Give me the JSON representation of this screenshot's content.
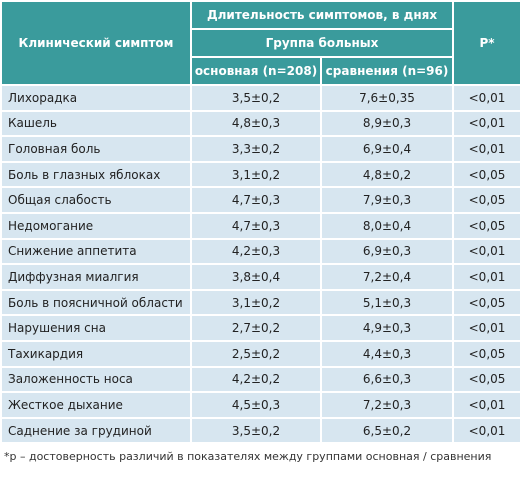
{
  "header": {
    "symptom": "Клинический симптом",
    "duration": "Длительность симптомов, в днях",
    "group": "Группа больных",
    "main": "основная (n=208)",
    "compare": "сравнения (n=96)",
    "p": "Р*"
  },
  "table": {
    "rows": [
      [
        "Лихорадка",
        "3,5±0,2",
        "7,6±0,35",
        "<0,01"
      ],
      [
        "Кашель",
        "4,8±0,3",
        "8,9±0,3",
        "<0,01"
      ],
      [
        "Головная боль",
        "3,3±0,2",
        "6,9±0,4",
        "<0,01"
      ],
      [
        "Боль в глазных яблоках",
        "3,1±0,2",
        "4,8±0,2",
        "<0,05"
      ],
      [
        "Общая слабость",
        "4,7±0,3",
        "7,9±0,3",
        "<0,05"
      ],
      [
        "Недомогание",
        "4,7±0,3",
        "8,0±0,4",
        "<0,05"
      ],
      [
        "Снижение аппетита",
        "4,2±0,3",
        "6,9±0,3",
        "<0,01"
      ],
      [
        "Диффузная миалгия",
        "3,8±0,4",
        "7,2±0,4",
        "<0,01"
      ],
      [
        "Боль в поясничной области",
        "3,1±0,2",
        "5,1±0,3",
        "<0,05"
      ],
      [
        "Нарушения сна",
        "2,7±0,2",
        "4,9±0,3",
        "<0,01"
      ],
      [
        "Тахикардия",
        "2,5±0,2",
        "4,4±0,3",
        "<0,05"
      ],
      [
        "Заложенность носа",
        "4,2±0,2",
        "6,6±0,3",
        "<0,05"
      ],
      [
        "Жесткое дыхание",
        "4,5±0,3",
        "7,2±0,3",
        "<0,01"
      ],
      [
        "Саднение за грудиной",
        "3,5±0,2",
        "6,5±0,2",
        "<0,01"
      ]
    ]
  },
  "footnote": "*р – достоверность различий в показателях между группами основная / сравнения"
}
